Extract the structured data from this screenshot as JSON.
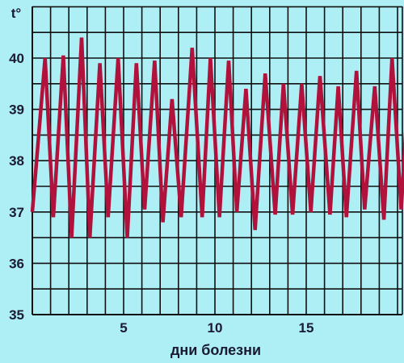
{
  "chart_data": {
    "type": "line",
    "title": "",
    "xlabel": "дни болезни",
    "ylabel": "t°",
    "xlim": [
      0,
      20
    ],
    "ylim": [
      35,
      41
    ],
    "x_ticks": [
      5,
      10,
      15
    ],
    "y_ticks": [
      35,
      36,
      37,
      38,
      39,
      40
    ],
    "grid": true,
    "colors": {
      "background": "#aeeef5",
      "grid": "#111111",
      "line": "#b0123c",
      "text": "#1a1a33"
    },
    "series": [
      {
        "points": [
          [
            0.0,
            37.0
          ],
          [
            0.7,
            40.0
          ],
          [
            1.15,
            36.9
          ],
          [
            1.7,
            40.05
          ],
          [
            2.15,
            36.5
          ],
          [
            2.7,
            40.4
          ],
          [
            3.15,
            36.5
          ],
          [
            3.7,
            39.9
          ],
          [
            4.15,
            36.9
          ],
          [
            4.7,
            40.0
          ],
          [
            5.2,
            36.5
          ],
          [
            5.7,
            39.9
          ],
          [
            6.15,
            37.05
          ],
          [
            6.7,
            39.95
          ],
          [
            7.15,
            36.8
          ],
          [
            7.65,
            39.2
          ],
          [
            8.15,
            36.9
          ],
          [
            8.75,
            40.2
          ],
          [
            9.3,
            36.9
          ],
          [
            9.75,
            40.0
          ],
          [
            10.25,
            36.9
          ],
          [
            10.75,
            39.95
          ],
          [
            11.2,
            37.0
          ],
          [
            11.7,
            39.4
          ],
          [
            12.2,
            36.65
          ],
          [
            12.75,
            39.7
          ],
          [
            13.3,
            36.95
          ],
          [
            13.75,
            39.5
          ],
          [
            14.25,
            36.95
          ],
          [
            14.75,
            39.5
          ],
          [
            15.25,
            37.0
          ],
          [
            15.75,
            39.65
          ],
          [
            16.3,
            36.95
          ],
          [
            16.75,
            39.45
          ],
          [
            17.2,
            36.9
          ],
          [
            17.75,
            39.75
          ],
          [
            18.2,
            37.05
          ],
          [
            18.75,
            39.45
          ],
          [
            19.25,
            36.85
          ],
          [
            19.7,
            40.0
          ],
          [
            20.2,
            37.05
          ],
          [
            20.6,
            39.5
          ]
        ]
      }
    ]
  }
}
